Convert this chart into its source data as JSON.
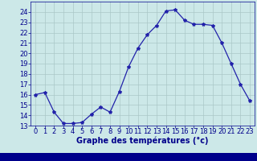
{
  "hours": [
    0,
    1,
    2,
    3,
    4,
    5,
    6,
    7,
    8,
    9,
    10,
    11,
    12,
    13,
    14,
    15,
    16,
    17,
    18,
    19,
    20,
    21,
    22,
    23
  ],
  "temperatures": [
    16.0,
    16.2,
    14.3,
    13.2,
    13.2,
    13.3,
    14.1,
    14.8,
    14.3,
    16.3,
    18.7,
    20.5,
    21.8,
    22.7,
    24.1,
    24.2,
    23.2,
    22.8,
    22.8,
    22.7,
    21.0,
    19.0,
    17.0,
    15.4
  ],
  "line_color": "#2222aa",
  "marker": "*",
  "marker_size": 3,
  "bg_color": "#cce8e8",
  "grid_color": "#aac8c8",
  "axis_label_color": "#00008b",
  "tick_label_color": "#00008b",
  "xlabel": "Graphe des températures (°c)",
  "ylim": [
    13,
    25
  ],
  "xlim": [
    -0.5,
    23.5
  ],
  "yticks": [
    13,
    14,
    15,
    16,
    17,
    18,
    19,
    20,
    21,
    22,
    23,
    24
  ],
  "xticks": [
    0,
    1,
    2,
    3,
    4,
    5,
    6,
    7,
    8,
    9,
    10,
    11,
    12,
    13,
    14,
    15,
    16,
    17,
    18,
    19,
    20,
    21,
    22,
    23
  ],
  "bottom_bar_color": "#00008b",
  "xlabel_fontsize": 7,
  "tick_fontsize": 6
}
